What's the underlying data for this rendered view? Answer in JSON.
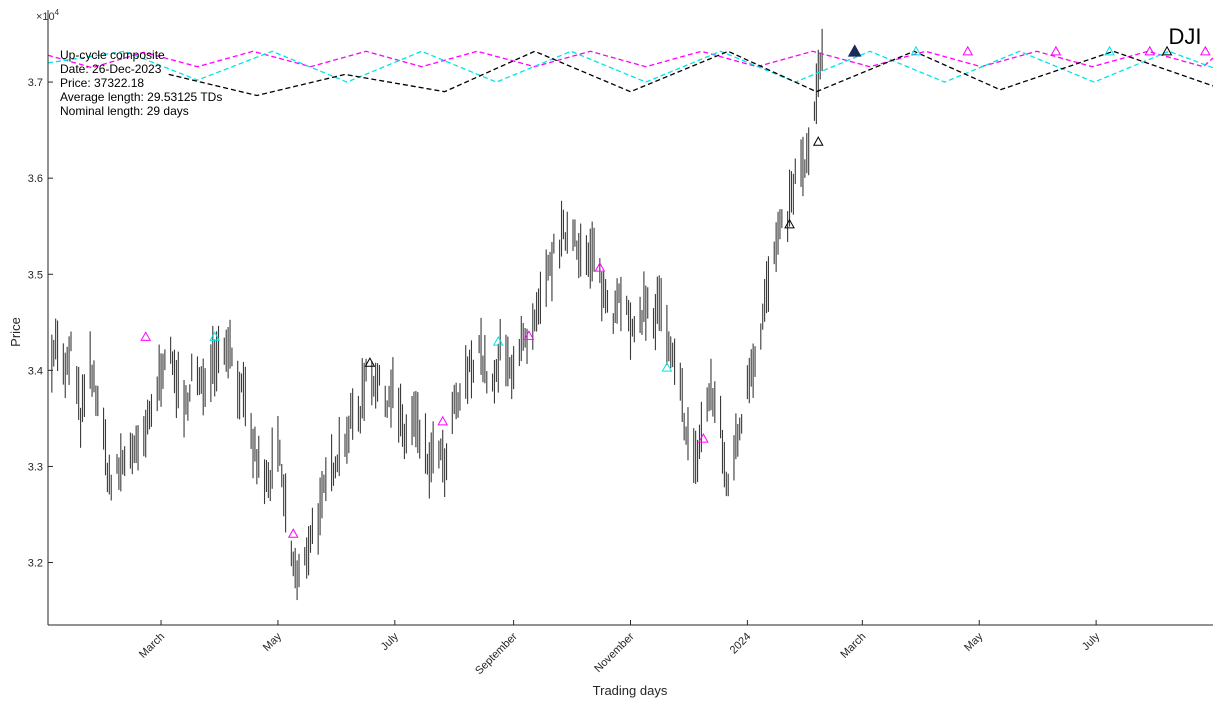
{
  "chart_data": {
    "type": "line",
    "title": "DJI",
    "xlabel": "Trading days",
    "ylabel": "Price",
    "y_exponent_label": "×10",
    "y_exponent_power": "4",
    "ylim": [
      31350,
      37750
    ],
    "yticks": [
      32000,
      33000,
      34000,
      35000,
      36000,
      37000
    ],
    "ytick_labels": [
      "3.2",
      "3.3",
      "3.4",
      "3.5",
      "3.6",
      "3.7"
    ],
    "x_range": [
      "2023-01-01",
      "2024-08-31"
    ],
    "xticks": [
      {
        "date": "2023-03-01",
        "label": "March"
      },
      {
        "date": "2023-05-01",
        "label": "May"
      },
      {
        "date": "2023-07-01",
        "label": "July"
      },
      {
        "date": "2023-09-01",
        "label": "September"
      },
      {
        "date": "2023-11-01",
        "label": "November"
      },
      {
        "date": "2024-01-01",
        "label": "2024"
      },
      {
        "date": "2024-03-01",
        "label": "March"
      },
      {
        "date": "2024-05-01",
        "label": "May"
      },
      {
        "date": "2024-07-01",
        "label": "July"
      }
    ],
    "grid": false,
    "info_box": [
      "Up-cycle composite",
      "Date: 26-Dec-2023",
      "Price: 37322.18",
      "Average length: 29.53125 TDs",
      "Nominal length: 29 days"
    ],
    "price_path": [
      [
        "2023-01-03",
        34200
      ],
      [
        "2023-01-06",
        34300
      ],
      [
        "2023-01-10",
        33900
      ],
      [
        "2023-01-13",
        34250
      ],
      [
        "2023-01-18",
        33500
      ],
      [
        "2023-01-23",
        34000
      ],
      [
        "2023-01-27",
        33700
      ],
      [
        "2023-02-01",
        33000
      ],
      [
        "2023-02-03",
        32800
      ],
      [
        "2023-02-08",
        33000
      ],
      [
        "2023-02-13",
        33200
      ],
      [
        "2023-02-17",
        33100
      ],
      [
        "2023-02-22",
        33400
      ],
      [
        "2023-02-27",
        33800
      ],
      [
        "2023-03-03",
        34200
      ],
      [
        "2023-03-08",
        34000
      ],
      [
        "2023-03-13",
        33500
      ],
      [
        "2023-03-17",
        34000
      ],
      [
        "2023-03-22",
        33800
      ],
      [
        "2023-03-27",
        34100
      ],
      [
        "2023-03-31",
        34200
      ],
      [
        "2023-04-05",
        34300
      ],
      [
        "2023-04-10",
        33900
      ],
      [
        "2023-04-13",
        33700
      ],
      [
        "2023-04-18",
        33200
      ],
      [
        "2023-04-21",
        33000
      ],
      [
        "2023-04-26",
        32800
      ],
      [
        "2023-05-01",
        33200
      ],
      [
        "2023-05-04",
        32700
      ],
      [
        "2023-05-08",
        32100
      ],
      [
        "2023-05-11",
        31800
      ],
      [
        "2023-05-15",
        32000
      ],
      [
        "2023-05-18",
        32300
      ],
      [
        "2023-05-23",
        32500
      ],
      [
        "2023-05-26",
        32800
      ],
      [
        "2023-05-31",
        33100
      ],
      [
        "2023-06-05",
        33300
      ],
      [
        "2023-06-09",
        33500
      ],
      [
        "2023-06-13",
        33600
      ],
      [
        "2023-06-16",
        34000
      ],
      [
        "2023-06-21",
        33900
      ],
      [
        "2023-06-26",
        33700
      ],
      [
        "2023-06-30",
        33800
      ],
      [
        "2023-07-06",
        33300
      ],
      [
        "2023-07-11",
        33500
      ],
      [
        "2023-07-14",
        33300
      ],
      [
        "2023-07-19",
        33000
      ],
      [
        "2023-07-24",
        33200
      ],
      [
        "2023-07-27",
        32900
      ],
      [
        "2023-08-01",
        33600
      ],
      [
        "2023-08-04",
        33700
      ],
      [
        "2023-08-09",
        34000
      ],
      [
        "2023-08-14",
        34300
      ],
      [
        "2023-08-17",
        34000
      ],
      [
        "2023-08-22",
        33800
      ],
      [
        "2023-08-25",
        34200
      ],
      [
        "2023-08-30",
        34000
      ],
      [
        "2023-09-05",
        34300
      ],
      [
        "2023-09-08",
        34200
      ],
      [
        "2023-09-13",
        34500
      ],
      [
        "2023-09-18",
        34900
      ],
      [
        "2023-09-22",
        35200
      ],
      [
        "2023-09-27",
        35400
      ],
      [
        "2023-10-02",
        35500
      ],
      [
        "2023-10-05",
        35300
      ],
      [
        "2023-10-10",
        35100
      ],
      [
        "2023-10-13",
        35200
      ],
      [
        "2023-10-18",
        34800
      ],
      [
        "2023-10-23",
        34600
      ],
      [
        "2023-10-26",
        34900
      ],
      [
        "2023-10-31",
        34500
      ],
      [
        "2023-11-03",
        34300
      ],
      [
        "2023-11-08",
        34700
      ],
      [
        "2023-11-13",
        34500
      ],
      [
        "2023-11-16",
        34700
      ],
      [
        "2023-11-21",
        34200
      ],
      [
        "2023-11-27",
        33800
      ],
      [
        "2023-11-30",
        33400
      ],
      [
        "2023-12-05",
        33000
      ],
      [
        "2023-12-08",
        33400
      ],
      [
        "2023-12-13",
        33800
      ],
      [
        "2023-12-18",
        33400
      ],
      [
        "2023-12-21",
        32800
      ],
      [
        "2023-12-27",
        33300
      ],
      [
        "2024-01-02",
        34000
      ],
      [
        "2024-01-06",
        34200
      ],
      [
        "2024-01-10",
        34700
      ],
      [
        "2024-01-14",
        35100
      ],
      [
        "2024-01-18",
        35400
      ],
      [
        "2024-01-22",
        35600
      ],
      [
        "2024-01-26",
        36000
      ],
      [
        "2024-01-30",
        36100
      ],
      [
        "2024-02-03",
        36300
      ],
      [
        "2024-02-07",
        37000
      ],
      [
        "2024-02-09",
        37300
      ]
    ],
    "composite_lines": [
      {
        "color": "#ff00ff",
        "dash": "dashed",
        "points": [
          [
            "2023-01-01",
            37280
          ],
          [
            "2023-01-24",
            37150
          ],
          [
            "2023-02-20",
            37310
          ],
          [
            "2023-03-20",
            37160
          ],
          [
            "2023-04-18",
            37320
          ],
          [
            "2023-05-18",
            37160
          ],
          [
            "2023-06-16",
            37320
          ],
          [
            "2023-07-15",
            37160
          ],
          [
            "2023-08-13",
            37320
          ],
          [
            "2023-09-12",
            37160
          ],
          [
            "2023-10-11",
            37320
          ],
          [
            "2023-11-09",
            37160
          ],
          [
            "2023-12-08",
            37320
          ],
          [
            "2024-01-06",
            37160
          ],
          [
            "2024-02-04",
            37320
          ],
          [
            "2024-03-05",
            37160
          ],
          [
            "2024-04-03",
            37320
          ],
          [
            "2024-05-02",
            37160
          ],
          [
            "2024-05-31",
            37320
          ],
          [
            "2024-06-29",
            37160
          ],
          [
            "2024-07-28",
            37320
          ],
          [
            "2024-08-26",
            37160
          ],
          [
            "2024-08-31",
            37250
          ]
        ]
      },
      {
        "color": "#00e5e5",
        "dash": "dashed",
        "points": [
          [
            "2023-01-01",
            37200
          ],
          [
            "2023-02-10",
            37320
          ],
          [
            "2023-03-20",
            37020
          ],
          [
            "2023-04-28",
            37320
          ],
          [
            "2023-06-06",
            37000
          ],
          [
            "2023-07-15",
            37320
          ],
          [
            "2023-08-23",
            37000
          ],
          [
            "2023-10-01",
            37320
          ],
          [
            "2023-11-09",
            37000
          ],
          [
            "2023-12-18",
            37320
          ],
          [
            "2024-01-26",
            37000
          ],
          [
            "2024-03-05",
            37320
          ],
          [
            "2024-04-13",
            37000
          ],
          [
            "2024-05-22",
            37320
          ],
          [
            "2024-06-30",
            37000
          ],
          [
            "2024-08-08",
            37320
          ],
          [
            "2024-08-31",
            37150
          ]
        ]
      },
      {
        "color": "#000000",
        "dash": "dashed",
        "points": [
          [
            "2023-03-05",
            37080
          ],
          [
            "2023-04-20",
            36860
          ],
          [
            "2023-06-05",
            37080
          ],
          [
            "2023-07-27",
            36900
          ],
          [
            "2023-09-12",
            37320
          ],
          [
            "2023-11-01",
            36900
          ],
          [
            "2023-12-22",
            37320
          ],
          [
            "2024-02-06",
            36900
          ],
          [
            "2024-03-28",
            37320
          ],
          [
            "2024-05-12",
            36920
          ],
          [
            "2024-07-10",
            37320
          ],
          [
            "2024-08-31",
            36960
          ]
        ]
      }
    ],
    "markers": [
      {
        "date": "2023-02-21",
        "price": 34350,
        "color": "#ff00ff"
      },
      {
        "date": "2023-03-29",
        "price": 34350,
        "color": "#00e5e5"
      },
      {
        "date": "2023-05-09",
        "price": 32300,
        "color": "#ff00ff"
      },
      {
        "date": "2023-06-18",
        "price": 34080,
        "color": "#000000"
      },
      {
        "date": "2023-07-26",
        "price": 33470,
        "color": "#ff00ff"
      },
      {
        "date": "2023-08-24",
        "price": 34300,
        "color": "#00e5e5"
      },
      {
        "date": "2023-09-09",
        "price": 34360,
        "color": "#ff00ff"
      },
      {
        "date": "2023-10-16",
        "price": 35070,
        "color": "#ff00ff"
      },
      {
        "date": "2023-11-20",
        "price": 34030,
        "color": "#00e5e5"
      },
      {
        "date": "2023-12-09",
        "price": 33290,
        "color": "#ff00ff"
      },
      {
        "date": "2024-01-23",
        "price": 35520,
        "color": "#000000"
      },
      {
        "date": "2024-02-07",
        "price": 36380,
        "color": "#000000"
      },
      {
        "date": "2024-02-26",
        "price": 37320,
        "color": "#1a2a5a",
        "filled": true
      },
      {
        "date": "2024-03-29",
        "price": 37320,
        "color": "#00e5e5"
      },
      {
        "date": "2024-04-25",
        "price": 37320,
        "color": "#ff00ff"
      },
      {
        "date": "2024-06-10",
        "price": 37320,
        "color": "#ff00ff"
      },
      {
        "date": "2024-07-08",
        "price": 37320,
        "color": "#00e5e5"
      },
      {
        "date": "2024-07-29",
        "price": 37320,
        "color": "#ff00ff"
      },
      {
        "date": "2024-08-07",
        "price": 37320,
        "color": "#000000"
      },
      {
        "date": "2024-08-27",
        "price": 37320,
        "color": "#ff00ff"
      }
    ]
  }
}
